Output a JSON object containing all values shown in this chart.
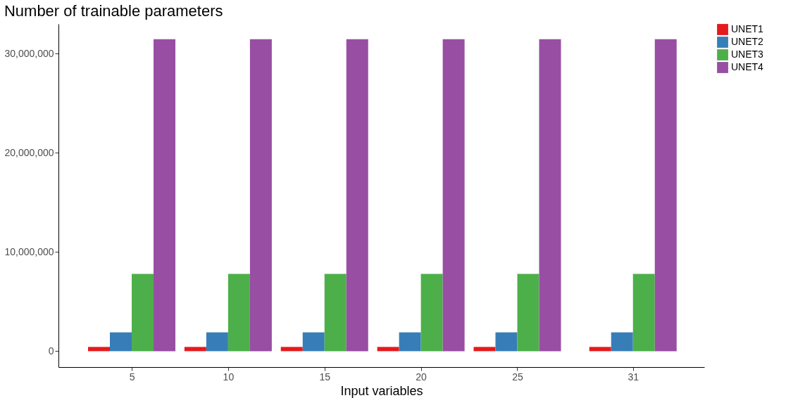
{
  "chart_data": {
    "type": "bar",
    "title": "Number of trainable parameters",
    "xlabel": "Input variables",
    "x": [
      5,
      10,
      15,
      20,
      25,
      31
    ],
    "xlim": [
      1.2,
      34.7
    ],
    "xticks": [
      5,
      10,
      15,
      20,
      25,
      31
    ],
    "ylim": [
      -1600000,
      33000000
    ],
    "yticks": [
      {
        "value": 0,
        "label": "0"
      },
      {
        "value": 10000000,
        "label": "10,000,000"
      },
      {
        "value": 20000000,
        "label": "20,000,000"
      },
      {
        "value": 30000000,
        "label": "30,000,000"
      }
    ],
    "series": [
      {
        "name": "UNET1",
        "color": "#e41a1c",
        "values": [
          430000,
          430000,
          430000,
          430000,
          430000,
          430000
        ]
      },
      {
        "name": "UNET2",
        "color": "#377eb8",
        "values": [
          1900000,
          1900000,
          1900000,
          1900000,
          1900000,
          1900000
        ]
      },
      {
        "name": "UNET3",
        "color": "#4daf4a",
        "values": [
          7800000,
          7800000,
          7800000,
          7800000,
          7800000,
          7800000
        ]
      },
      {
        "name": "UNET4",
        "color": "#984ea3",
        "values": [
          31450000,
          31450000,
          31450000,
          31450000,
          31450000,
          31450000
        ]
      }
    ],
    "grid": false,
    "legend": "right"
  }
}
